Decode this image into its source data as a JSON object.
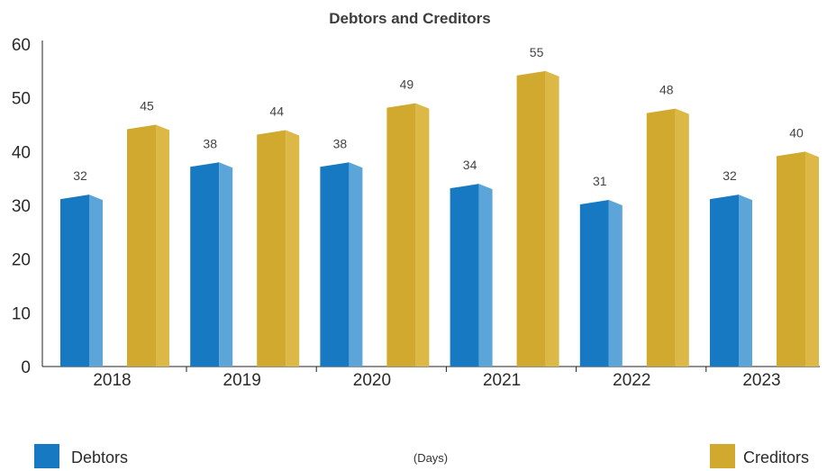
{
  "chart_data": {
    "type": "bar",
    "title": "Debtors and Creditors",
    "categories": [
      "2018",
      "2019",
      "2020",
      "2021",
      "2022",
      "2023"
    ],
    "series": [
      {
        "name": "Debtors",
        "values": [
          32,
          38,
          38,
          34,
          31,
          32
        ],
        "color": "#1679c2",
        "side_color": "#5ba5d9"
      },
      {
        "name": "Creditors",
        "values": [
          45,
          44,
          49,
          55,
          48,
          40
        ],
        "color": "#d0a92e",
        "side_color": "#dcb846"
      }
    ],
    "unit_label": "(Days)",
    "ylim": [
      0,
      60
    ],
    "yticks": [
      0,
      10,
      20,
      30,
      40,
      50,
      60
    ],
    "grid": false,
    "legend": {
      "debtors_position": "bottom-left",
      "creditors_position": "bottom-right"
    }
  }
}
